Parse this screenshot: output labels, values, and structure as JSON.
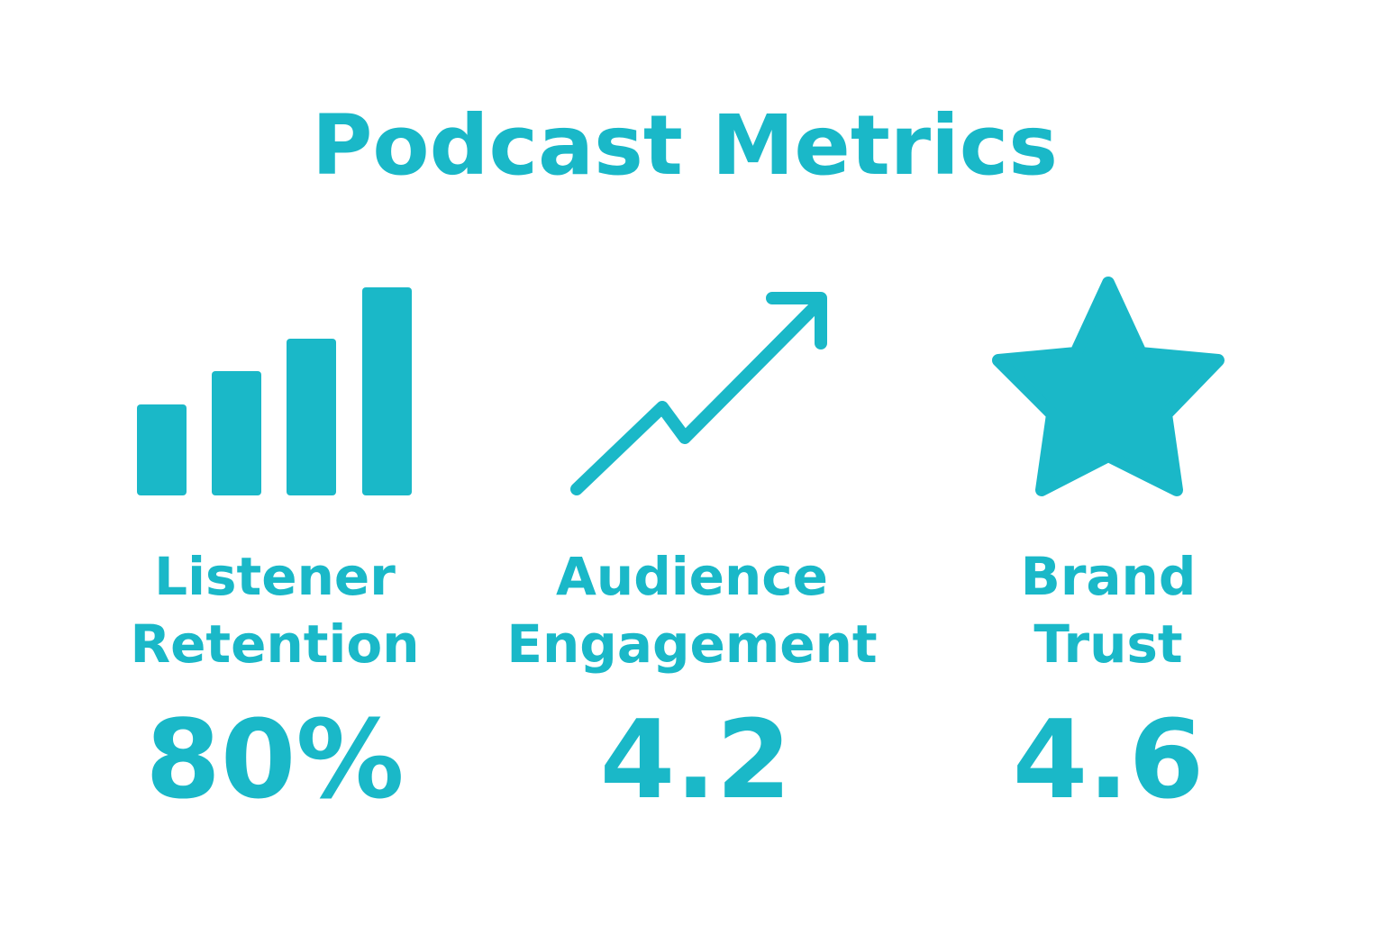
{
  "header": {
    "title": "Podcast Metrics"
  },
  "metrics": [
    {
      "label": [
        "Listener",
        "Retention"
      ],
      "value": "80%"
    },
    {
      "label": [
        "Audience",
        "Engagement"
      ],
      "value": "4.2"
    },
    {
      "label": [
        "Brand",
        "Trust"
      ],
      "value": "4.6"
    }
  ]
}
